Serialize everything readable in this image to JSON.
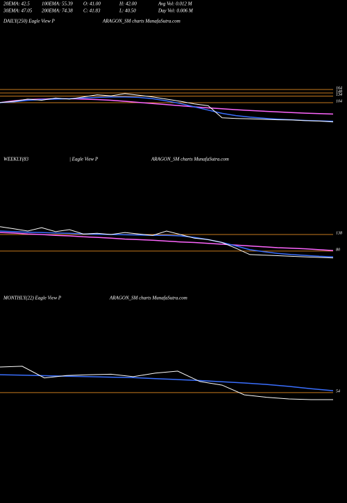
{
  "header": {
    "stats": [
      "20EMA: 42.5",
      "100EMA: 55.39",
      "O: 41.00",
      "H: 42.00",
      "Avg Vol: 0.012  M",
      "30EMA: 47.05",
      "200EMA: 74.38",
      "C: 41.83",
      "L: 40.50",
      "Day Vol: 0.006  M"
    ]
  },
  "chart_data": [
    {
      "type": "line",
      "title": "DAILY(250) Eagle  View  P",
      "source": "ARAGON_SM charts MunafaSutra.com",
      "ylim": [
        -29,
        224
      ],
      "yticks": [
        164,
        148,
        134,
        104
      ],
      "level_color": "#c87a1e",
      "series": [
        {
          "color": "#ff66ff",
          "values": [
            104,
            112,
            118,
            120,
            122,
            122,
            120,
            118,
            115,
            110,
            105,
            100,
            95,
            90,
            85,
            80,
            76,
            72,
            68,
            65,
            62,
            59,
            56,
            54,
            52
          ]
        },
        {
          "color": "#3a6fff",
          "values": [
            104,
            108,
            115,
            118,
            120,
            122,
            125,
            128,
            130,
            130,
            128,
            122,
            112,
            100,
            85,
            70,
            55,
            45,
            38,
            33,
            29,
            26,
            23,
            21,
            19
          ]
        },
        {
          "color": "#ffffff",
          "values": [
            104,
            110,
            120,
            115,
            125,
            120,
            130,
            140,
            135,
            145,
            138,
            130,
            120,
            110,
            98,
            90,
            35,
            32,
            30,
            28,
            26,
            25,
            22,
            20,
            16
          ]
        }
      ]
    },
    {
      "type": "line",
      "title": "WEEKLY(83",
      "subtitle": "| Eagle  View  P",
      "source": "ARAGON_SM charts MunafaSutra.com",
      "ylim": [
        12,
        230
      ],
      "yticks": [
        138,
        80
      ],
      "level_color": "#c87a1e",
      "series": [
        {
          "color": "#ff66ff",
          "values": [
            145,
            143,
            140,
            138,
            135,
            133,
            130,
            128,
            125,
            122,
            120,
            118,
            115,
            112,
            110,
            107,
            104,
            101,
            98,
            95,
            92,
            90,
            88,
            85,
            82
          ]
        },
        {
          "color": "#3a6fff",
          "values": [
            150,
            148,
            146,
            145,
            143,
            142,
            140,
            139,
            138,
            137,
            136,
            135,
            135,
            133,
            128,
            120,
            110,
            98,
            85,
            78,
            72,
            68,
            65,
            62,
            60
          ]
        },
        {
          "color": "#ffffff",
          "values": [
            165,
            158,
            150,
            162,
            148,
            155,
            140,
            142,
            138,
            145,
            140,
            135,
            150,
            138,
            125,
            120,
            110,
            90,
            68,
            66,
            64,
            62,
            60,
            58,
            56
          ]
        }
      ]
    },
    {
      "type": "line",
      "title": "MONTHLY(22) Eagle  View  P",
      "source": "ARAGON_SM charts MunafaSutra.com",
      "ylim": [
        -15,
        243
      ],
      "yticks": [
        54
      ],
      "level_color": "#c87a1e",
      "series": [
        {
          "color": "#3a6fff",
          "values": [
            128,
            126,
            124,
            122,
            120,
            118,
            116,
            112,
            108,
            104,
            99,
            94,
            88,
            80,
            70,
            62
          ]
        },
        {
          "color": "#ffffff",
          "values": [
            160,
            163,
            115,
            125,
            128,
            130,
            120,
            135,
            143,
            100,
            85,
            45,
            35,
            28,
            25,
            25
          ]
        }
      ]
    }
  ]
}
